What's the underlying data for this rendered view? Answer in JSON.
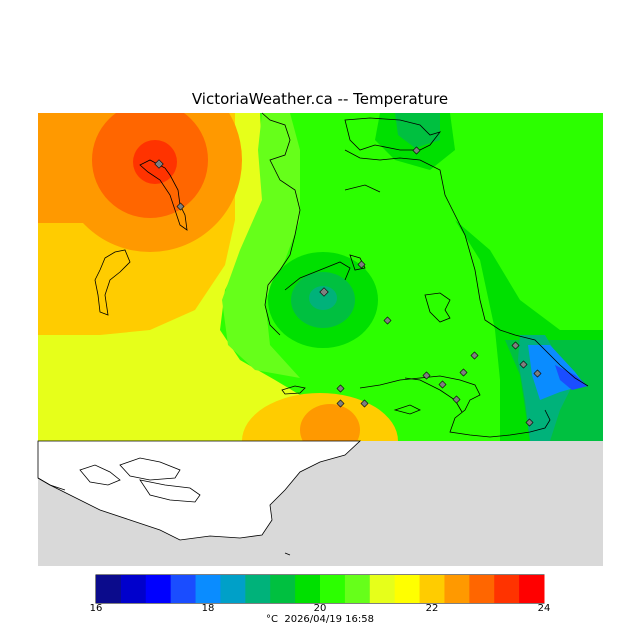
{
  "page": {
    "title": "VictoriaWeather.ca  --  Temperature"
  },
  "map": {
    "background_color": "#d9d9d9",
    "land_color": "#ffffff",
    "marker_color": "#7f7f7f",
    "icons": [
      "contour-map",
      "station-marker-icon",
      "coastline"
    ]
  },
  "legend": {
    "colors": [
      "#0b0b8c",
      "#0000cc",
      "#0000ff",
      "#1a4dff",
      "#0a8cff",
      "#00a0c8",
      "#00b27a",
      "#00c040",
      "#00e000",
      "#2cff00",
      "#66ff1a",
      "#e6ff1a",
      "#ffff00",
      "#ffcc00",
      "#ff9900",
      "#ff6600",
      "#ff3300",
      "#ff0000"
    ],
    "min": 16,
    "max": 24,
    "ticks": [
      "16",
      "18",
      "20",
      "22",
      "24"
    ],
    "caption": "°C  2026/04/19 16:58"
  }
}
